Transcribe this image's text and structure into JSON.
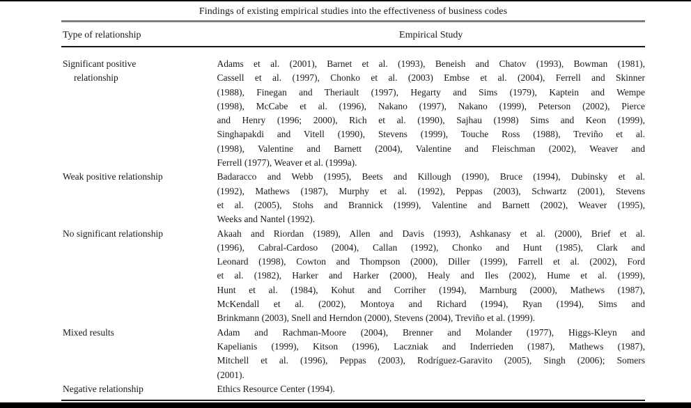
{
  "table": {
    "title": "Findings of existing empirical studies into the effectiveness of business codes",
    "columns": [
      "Type of relationship",
      "Empirical Study"
    ],
    "rows": [
      {
        "type": [
          "Significant positive",
          "relationship"
        ],
        "citations": [
          "Adams et al. (2001), Barnet et al. (1993), Beneish and Chatov (1993), Bowman (1981),",
          "Cassell et al. (1997), Chonko et al. (2003) Embse et al. (2004), Ferrell and Skinner",
          "(1988), Finegan and Theriault (1997), Hegarty and Sims (1979), Kaptein and Wempe",
          "(1998), McCabe et al. (1996), Nakano (1997), Nakano (1999), Peterson (2002), Pierce",
          "and Henry (1996; 2000), Rich et al. (1990), Sajhau (1998) Sims and Keon (1999),",
          "Singhapakdi and Vitell (1990), Stevens (1999), Touche Ross (1988), Treviño et al.",
          "(1998), Valentine and Barnett (2004), Valentine and Fleischman (2002), Weaver and",
          "Ferrell (1977), Weaver et al. (1999a)."
        ]
      },
      {
        "type": [
          "Weak positive relationship"
        ],
        "citations": [
          "Badaracco and Webb (1995), Beets and Killough (1990), Bruce (1994), Dubinsky et al.",
          "(1992), Mathews (1987), Murphy et al. (1992), Peppas (2003), Schwartz (2001), Stevens",
          "et al. (2005), Stohs and Brannick (1999), Valentine and Barnett (2002), Weaver (1995),",
          "Weeks and Nantel (1992)."
        ]
      },
      {
        "type": [
          "No significant relationship"
        ],
        "citations": [
          "Akaah and Riordan (1989), Allen and Davis (1993), Ashkanasy et al. (2000), Brief et al.",
          "(1996), Cabral-Cardoso (2004), Callan (1992), Chonko and Hunt (1985), Clark and",
          "Leonard (1998), Cowton and Thompson (2000), Diller (1999), Farrell et al. (2002), Ford",
          "et al. (1982), Harker and Harker (2000), Healy and Iles (2002), Hume et al. (1999),",
          "Hunt et al. (1984), Kohut and Corriher (1994), Marnburg (2000), Mathews (1987),",
          "McKendall et al. (2002), Montoya and Richard (1994), Ryan (1994), Sims and",
          "Brinkmann (2003), Snell and Herndon (2000), Stevens (2004), Treviño et al. (1999)."
        ]
      },
      {
        "type": [
          "Mixed results"
        ],
        "citations": [
          "Adam and Rachman-Moore (2004), Brenner and Molander (1977), Higgs-Kleyn and",
          "Kapelianis (1999), Kitson (1996), Laczniak and Inderrieden (1987), Mathews (1987),",
          "Mitchell et al. (1996), Peppas (2003), Rodríguez-Garavito (2005), Singh (2006); Somers",
          "(2001)."
        ]
      },
      {
        "type": [
          "Negative relationship"
        ],
        "citations": [
          "Ethics Resource Center (1994)."
        ]
      }
    ]
  }
}
